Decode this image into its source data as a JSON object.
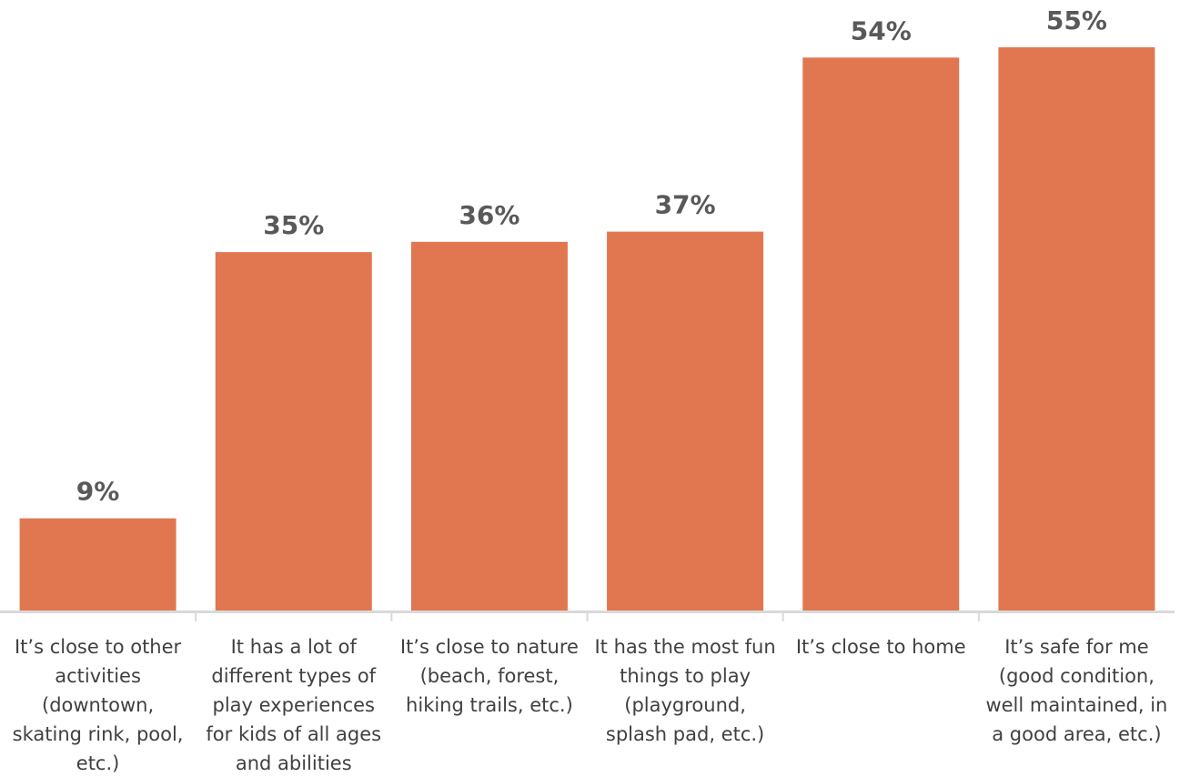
{
  "chart_data": {
    "type": "bar",
    "title": "",
    "xlabel": "",
    "ylabel": "",
    "ylim": [
      0,
      55
    ],
    "grid": false,
    "legend": "none",
    "bar_color": "#E07750",
    "axis_color": "#D9D9D9",
    "categories": [
      [
        "It’s close to other",
        "activities",
        "(downtown,",
        "skating rink, pool,",
        "etc.)"
      ],
      [
        "It has a lot of",
        "different types of",
        "play experiences",
        "for kids of all ages",
        "and abilities"
      ],
      [
        "It’s close to nature",
        "(beach, forest,",
        "hiking trails, etc.)"
      ],
      [
        "It has the most fun",
        "things to play",
        "(playground,",
        "splash pad, etc.)"
      ],
      [
        "It’s close to home"
      ],
      [
        "It’s safe for me",
        "(good condition,",
        "well maintained, in",
        "a good area, etc.)"
      ]
    ],
    "values": [
      9,
      35,
      36,
      37,
      54,
      55
    ],
    "value_labels": [
      "9%",
      "35%",
      "36%",
      "37%",
      "54%",
      "55%"
    ]
  }
}
